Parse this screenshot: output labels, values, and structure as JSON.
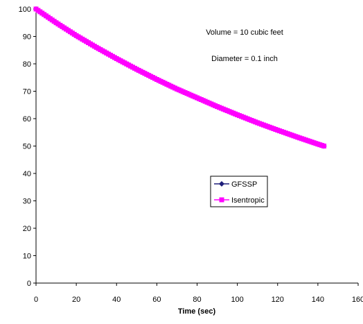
{
  "chart_data": {
    "type": "line",
    "title": "",
    "xlabel": "Time (sec)",
    "ylabel": "",
    "xlim": [
      0,
      160
    ],
    "ylim": [
      0,
      100
    ],
    "xticks": [
      0,
      20,
      40,
      60,
      80,
      100,
      120,
      140,
      160
    ],
    "yticks": [
      0,
      10,
      20,
      30,
      40,
      50,
      60,
      70,
      80,
      90,
      100
    ],
    "grid": false,
    "legend_position": "center",
    "annotations": [
      "Volume = 10 cubic feet",
      "Diameter = 0.1 inch"
    ],
    "x": [
      0,
      10,
      20,
      30,
      40,
      50,
      60,
      70,
      80,
      90,
      100,
      110,
      120,
      130,
      140,
      143
    ],
    "series": [
      {
        "name": "GFSSP",
        "color": "#1f1f7a",
        "marker": "diamond",
        "values": [
          100,
          95,
          90.3,
          86,
          81.9,
          78,
          74.3,
          70.8,
          67.6,
          64.4,
          61.4,
          58.5,
          55.8,
          53.2,
          50.7,
          50
        ]
      },
      {
        "name": "Isentropic",
        "color": "#ff00ff",
        "marker": "square",
        "values": [
          100,
          95,
          90.3,
          86,
          81.9,
          78,
          74.3,
          70.8,
          67.6,
          64.4,
          61.4,
          58.5,
          55.8,
          53.2,
          50.7,
          50
        ]
      }
    ]
  }
}
